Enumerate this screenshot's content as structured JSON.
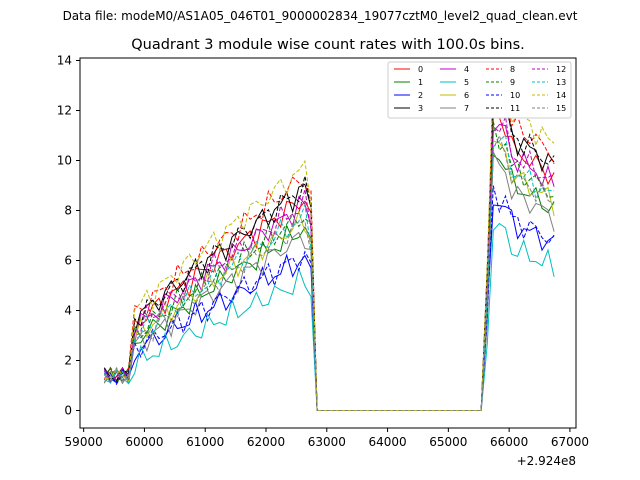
{
  "chart_data": {
    "type": "line",
    "suptitle": "Data file: modeM0/AS1A05_046T01_9000002834_19077cztM0_level2_quad_clean.evt",
    "title": "Quadrant 3 module wise count rates with 100.0s bins.",
    "xlabel": "",
    "ylabel": "",
    "x_offset_label": "+2.924e8",
    "xlim": [
      58940,
      67100
    ],
    "ylim": [
      -0.7,
      14.1
    ],
    "xticks": [
      59000,
      60000,
      61000,
      62000,
      63000,
      64000,
      65000,
      66000,
      67000
    ],
    "yticks": [
      0,
      2,
      4,
      6,
      8,
      10,
      12,
      14
    ],
    "grid": false,
    "legend_position": "top-right",
    "legend_columns": 4,
    "x": {
      "start": 59340,
      "step": 100,
      "count": 75
    },
    "series": [
      {
        "name": "0",
        "color": "#ff0000",
        "dash": "solid",
        "base": 8.3,
        "gap_index": 17,
        "off": 0.2,
        "ph": 0.0
      },
      {
        "name": "1",
        "color": "#008000",
        "dash": "solid",
        "base": 7.4,
        "gap_index": 17,
        "off": -0.1,
        "ph": 0.7
      },
      {
        "name": "2",
        "color": "#0000ff",
        "dash": "solid",
        "base": 6.0,
        "gap_index": 17,
        "off": 0.05,
        "ph": 1.4
      },
      {
        "name": "3",
        "color": "#000000",
        "dash": "solid",
        "base": 8.6,
        "gap_index": 17,
        "off": 0.3,
        "ph": 2.1
      },
      {
        "name": "4",
        "color": "#c000c0",
        "dash": "solid",
        "base": 8.1,
        "gap_index": 17,
        "off": 0.15,
        "ph": 2.8
      },
      {
        "name": "5",
        "color": "#00bfbf",
        "dash": "solid",
        "base": 5.4,
        "gap_index": 17,
        "off": -0.2,
        "ph": 3.5
      },
      {
        "name": "6",
        "color": "#bfbf00",
        "dash": "solid",
        "base": 7.6,
        "gap_index": 17,
        "off": 0.0,
        "ph": 4.2
      },
      {
        "name": "7",
        "color": "#808080",
        "dash": "solid",
        "base": 7.3,
        "gap_index": 17,
        "off": -0.3,
        "ph": 4.9
      },
      {
        "name": "8",
        "color": "#ff0000",
        "dash": "dashed",
        "base": 9.0,
        "gap_index": 17,
        "off": 0.35,
        "ph": 5.6
      },
      {
        "name": "9",
        "color": "#008000",
        "dash": "dashed",
        "base": 7.9,
        "gap_index": 17,
        "off": -0.05,
        "ph": 6.3
      },
      {
        "name": "10",
        "color": "#0000ff",
        "dash": "dashed",
        "base": 6.1,
        "gap_index": 17,
        "off": 0.1,
        "ph": 7.0
      },
      {
        "name": "11",
        "color": "#000000",
        "dash": "dashed",
        "base": 8.7,
        "gap_index": 17,
        "off": 0.25,
        "ph": 7.7
      },
      {
        "name": "12",
        "color": "#c000c0",
        "dash": "dashed",
        "base": 8.2,
        "gap_index": 17,
        "off": 0.1,
        "ph": 8.4
      },
      {
        "name": "13",
        "color": "#00bfbf",
        "dash": "dashed",
        "base": 7.9,
        "gap_index": 17,
        "off": -0.15,
        "ph": 9.1
      },
      {
        "name": "14",
        "color": "#bfbf00",
        "dash": "dashed",
        "base": 9.3,
        "gap_index": 17,
        "off": 0.4,
        "ph": 9.8
      },
      {
        "name": "15",
        "color": "#808080",
        "dash": "dashed",
        "base": 7.8,
        "gap_index": 17,
        "off": -0.25,
        "ph": 10.5
      }
    ]
  }
}
